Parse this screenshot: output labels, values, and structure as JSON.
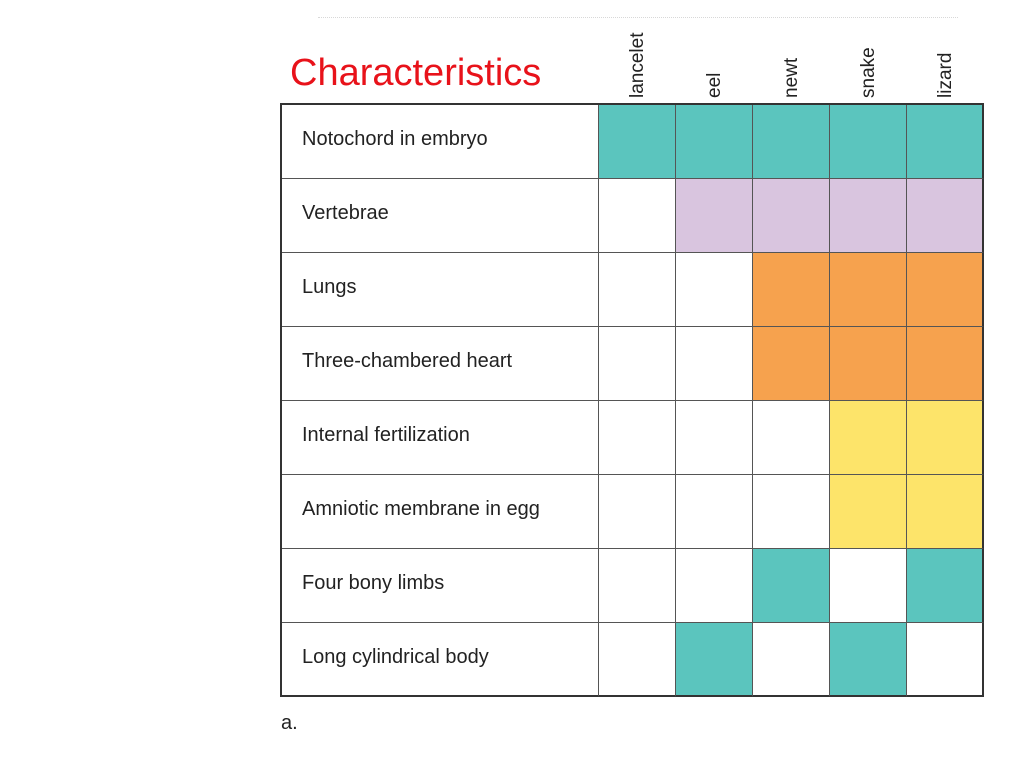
{
  "title": "Characteristics",
  "columns": [
    "lancelet",
    "eel",
    "newt",
    "snake",
    "lizard"
  ],
  "rows": [
    {
      "label": "Notochord in embryo",
      "color": "#5bc5be",
      "present": [
        1,
        1,
        1,
        1,
        1
      ]
    },
    {
      "label": "Vertebrae",
      "color": "#d9c5df",
      "present": [
        0,
        1,
        1,
        1,
        1
      ]
    },
    {
      "label": "Lungs",
      "color": "#f6a24e",
      "present": [
        0,
        0,
        1,
        1,
        1
      ]
    },
    {
      "label": "Three-chambered heart",
      "color": "#f6a24e",
      "present": [
        0,
        0,
        1,
        1,
        1
      ]
    },
    {
      "label": "Internal fertilization",
      "color": "#fde46a",
      "present": [
        0,
        0,
        0,
        1,
        1
      ]
    },
    {
      "label": "Amniotic membrane in egg",
      "color": "#fde46a",
      "present": [
        0,
        0,
        0,
        1,
        1
      ]
    },
    {
      "label": "Four bony limbs",
      "color": "#5bc5be",
      "present": [
        0,
        0,
        1,
        0,
        1
      ]
    },
    {
      "label": "Long cylindrical body",
      "color": "#5bc5be",
      "present": [
        0,
        1,
        0,
        1,
        0
      ]
    }
  ],
  "caption": "a.",
  "colors": {
    "title": "#e8121a",
    "teal": "#5bc5be",
    "purple": "#d9c5df",
    "orange": "#f6a24e",
    "yellow": "#fde46a"
  }
}
